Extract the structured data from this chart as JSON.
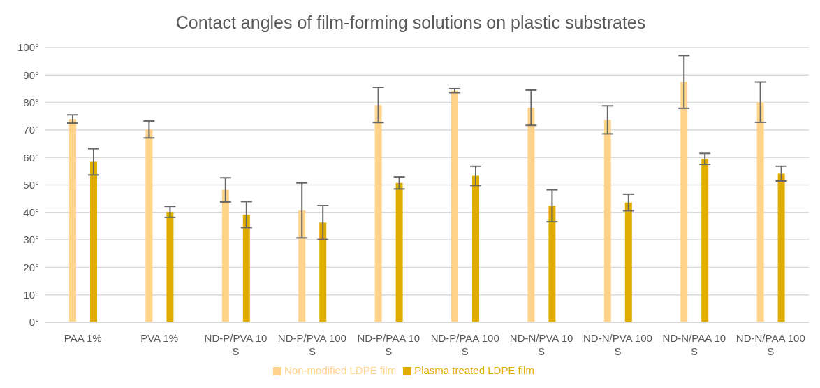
{
  "chart_data": {
    "type": "bar",
    "title": "Contact angles of film-forming solutions on plastic substrates",
    "categories": [
      "PAA 1%",
      "PVA 1%",
      "ND-P/PVA 10 S",
      "ND-P/PVA 100 S",
      "ND-P/PAA 10 S",
      "ND-P/PAA 100 S",
      "ND-N/PVA 10 S",
      "ND-N/PVA 100 S",
      "ND-N/PAA 10 S",
      "ND-N/PAA 100 S"
    ],
    "series": [
      {
        "name": "Non-modified LDPE film",
        "color": "#ffd48a",
        "values": [
          74.0,
          70.2,
          48.2,
          40.7,
          79.1,
          84.3,
          78.1,
          73.7,
          87.5,
          80.1
        ],
        "errors": [
          1.5,
          3.1,
          4.4,
          10.0,
          6.4,
          0.7,
          6.4,
          5.1,
          9.6,
          7.3
        ]
      },
      {
        "name": "Plasma treated LDPE film",
        "color": "#e0ac00",
        "values": [
          58.4,
          40.2,
          39.2,
          36.3,
          50.7,
          53.3,
          42.4,
          43.6,
          59.5,
          54.1
        ],
        "errors": [
          4.8,
          2.0,
          4.7,
          6.2,
          2.2,
          3.5,
          5.8,
          3.0,
          2.0,
          2.7
        ]
      }
    ],
    "ylim": [
      0,
      100
    ],
    "yticks": [
      {
        "value": 0,
        "label": "0°"
      },
      {
        "value": 10,
        "label": "10°"
      },
      {
        "value": 20,
        "label": "20°"
      },
      {
        "value": 30,
        "label": "30°"
      },
      {
        "value": 40,
        "label": "40°"
      },
      {
        "value": 50,
        "label": "50°"
      },
      {
        "value": 60,
        "label": "60°"
      },
      {
        "value": 70,
        "label": "70°"
      },
      {
        "value": 80,
        "label": "80°"
      },
      {
        "value": 90,
        "label": "90°"
      },
      {
        "value": 100,
        "label": "100°"
      }
    ],
    "grid": "y",
    "legend": "bottom"
  }
}
